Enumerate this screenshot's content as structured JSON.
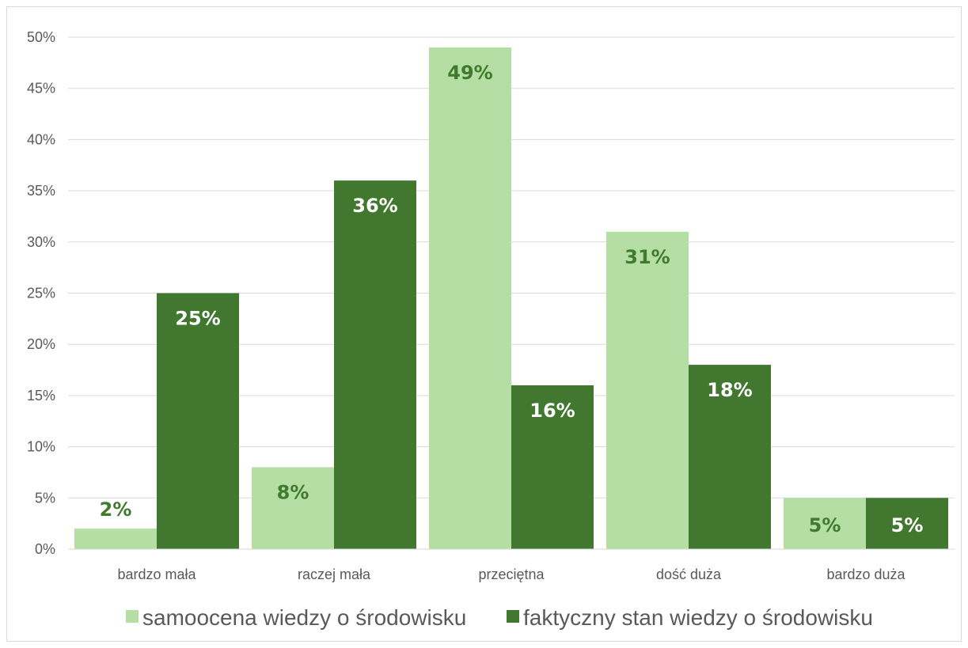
{
  "chart_data": {
    "type": "bar",
    "categories": [
      "bardzo mała",
      "raczej mała",
      "przeciętna",
      "dość duża",
      "bardzo duża"
    ],
    "series": [
      {
        "name": "samoocena wiedzy o środowisku",
        "values": [
          2,
          8,
          49,
          31,
          5
        ],
        "color": "#b5dea4",
        "label_color": "#3f7a2e",
        "labels": [
          "2%",
          "8%",
          "49%",
          "31%",
          "5%"
        ]
      },
      {
        "name": "faktyczny stan wiedzy o środowisku",
        "values": [
          25,
          36,
          16,
          18,
          5
        ],
        "color": "#41772e",
        "label_color": "#ffffff",
        "labels": [
          "25%",
          "36%",
          "16%",
          "18%",
          "5%"
        ]
      }
    ],
    "ylim": [
      0,
      50
    ],
    "yticks": [
      0,
      5,
      10,
      15,
      20,
      25,
      30,
      35,
      40,
      45,
      50
    ],
    "ytick_labels": [
      "0%",
      "5%",
      "10%",
      "15%",
      "20%",
      "25%",
      "30%",
      "35%",
      "40%",
      "45%",
      "50%"
    ],
    "grid": true,
    "gridline_color": "#d9d9d9",
    "legend_position": "bottom",
    "title": "",
    "xlabel": "",
    "ylabel": ""
  }
}
